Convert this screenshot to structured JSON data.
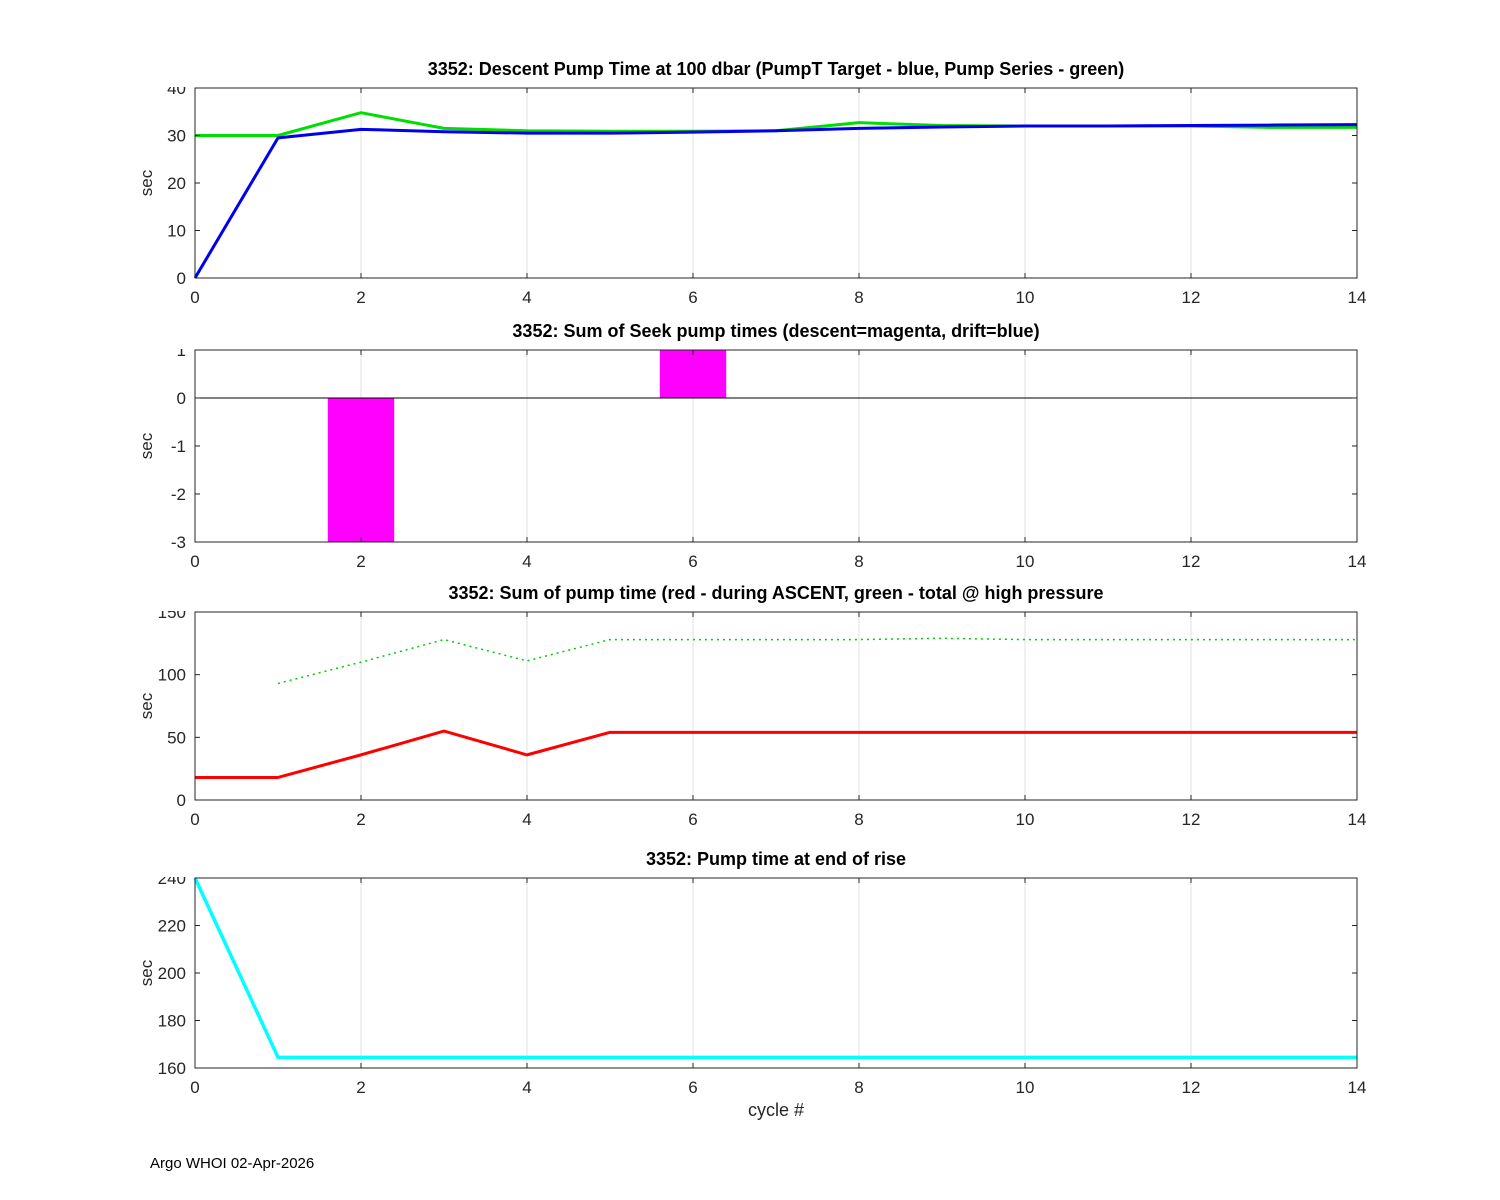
{
  "xlabel": "cycle #",
  "footer": "Argo WHOI 02-Apr-2026",
  "colors": {
    "target_blue": "#0000ee",
    "series_green": "#00dd00",
    "descent_magenta": "#ff00ff",
    "ascent_red": "#ff0000",
    "rise_cyan": "#00ffff",
    "axis": "#262626",
    "grid": "#e0e0e0"
  },
  "chart_data": [
    {
      "type": "line",
      "title": "3352: Descent Pump Time at 100 dbar (PumpT Target - blue, Pump Series - green)",
      "ylabel": "sec",
      "xlim": [
        0,
        14
      ],
      "ylim": [
        0,
        40
      ],
      "xticks": [
        0,
        2,
        4,
        6,
        8,
        10,
        12,
        14
      ],
      "yticks": [
        0,
        10,
        20,
        30,
        40
      ],
      "grid": "x",
      "series": [
        {
          "name": "Pump Series",
          "color": "#00dd00",
          "width": 3,
          "x": [
            0,
            1,
            2,
            3,
            4,
            5,
            6,
            7,
            8,
            9,
            10,
            11,
            12,
            13,
            14
          ],
          "y": [
            30,
            30,
            34.8,
            31.5,
            31.0,
            30.9,
            30.9,
            31.0,
            32.7,
            32.1,
            32.0,
            32.0,
            32.0,
            31.7,
            31.7
          ]
        },
        {
          "name": "PumpT Target",
          "color": "#0000ee",
          "width": 3,
          "x": [
            0,
            1,
            2,
            3,
            4,
            5,
            6,
            7,
            8,
            9,
            10,
            11,
            12,
            13,
            14
          ],
          "y": [
            0,
            29.5,
            31.3,
            30.8,
            30.5,
            30.5,
            30.7,
            31.0,
            31.5,
            31.8,
            32.0,
            32.0,
            32.1,
            32.2,
            32.3
          ]
        }
      ]
    },
    {
      "type": "bar",
      "title": "3352: Sum of Seek pump times (descent=magenta, drift=blue)",
      "ylabel": "sec",
      "xlim": [
        0,
        14
      ],
      "ylim": [
        -3,
        1
      ],
      "xticks": [
        0,
        2,
        4,
        6,
        8,
        10,
        12,
        14
      ],
      "yticks": [
        -3,
        -2,
        -1,
        0,
        1
      ],
      "grid": "x",
      "zero_line": true,
      "bars": [
        {
          "x": 2,
          "value": -3,
          "width": 0.8,
          "color": "#ff00ff",
          "series": "descent"
        },
        {
          "x": 6,
          "value": 1,
          "width": 0.8,
          "color": "#ff00ff",
          "series": "descent"
        }
      ]
    },
    {
      "type": "line",
      "title": "3352: Sum of pump time (red - during ASCENT, green - total @ high pressure",
      "ylabel": "sec",
      "xlim": [
        0,
        14
      ],
      "ylim": [
        0,
        150
      ],
      "xticks": [
        0,
        2,
        4,
        6,
        8,
        10,
        12,
        14
      ],
      "yticks": [
        0,
        50,
        100,
        150
      ],
      "grid": "x",
      "series": [
        {
          "name": "total @ high pressure",
          "color": "#00cc00",
          "width": 1.5,
          "dash": "2 4",
          "x": [
            1,
            2,
            3,
            4,
            5,
            6,
            7,
            8,
            9,
            10,
            11,
            12,
            13,
            14
          ],
          "y": [
            93,
            110,
            128,
            111,
            128,
            128,
            128,
            128,
            129,
            128,
            128,
            128,
            128,
            128
          ]
        },
        {
          "name": "during ASCENT",
          "color": "#ff0000",
          "width": 3,
          "x": [
            0,
            1,
            2,
            3,
            4,
            5,
            6,
            7,
            8,
            9,
            10,
            11,
            12,
            13,
            14
          ],
          "y": [
            18,
            18,
            36,
            55,
            36,
            54,
            54,
            54,
            54,
            54,
            54,
            54,
            54,
            54,
            54
          ]
        }
      ]
    },
    {
      "type": "line",
      "title": "3352: Pump time at end of rise",
      "ylabel": "sec",
      "xlim": [
        0,
        14
      ],
      "ylim": [
        160,
        240
      ],
      "xticks": [
        0,
        2,
        4,
        6,
        8,
        10,
        12,
        14
      ],
      "yticks": [
        160,
        180,
        200,
        220,
        240
      ],
      "grid": "x",
      "series": [
        {
          "name": "pump time at end of rise",
          "color": "#00ffff",
          "width": 3.5,
          "x": [
            0,
            1,
            2,
            3,
            4,
            5,
            6,
            7,
            8,
            9,
            10,
            11,
            12,
            13,
            14
          ],
          "y": [
            240,
            164.5,
            164.5,
            164.5,
            164.5,
            164.5,
            164.5,
            164.5,
            164.5,
            164.5,
            164.5,
            164.5,
            164.5,
            164.5,
            164.5
          ]
        }
      ]
    }
  ]
}
